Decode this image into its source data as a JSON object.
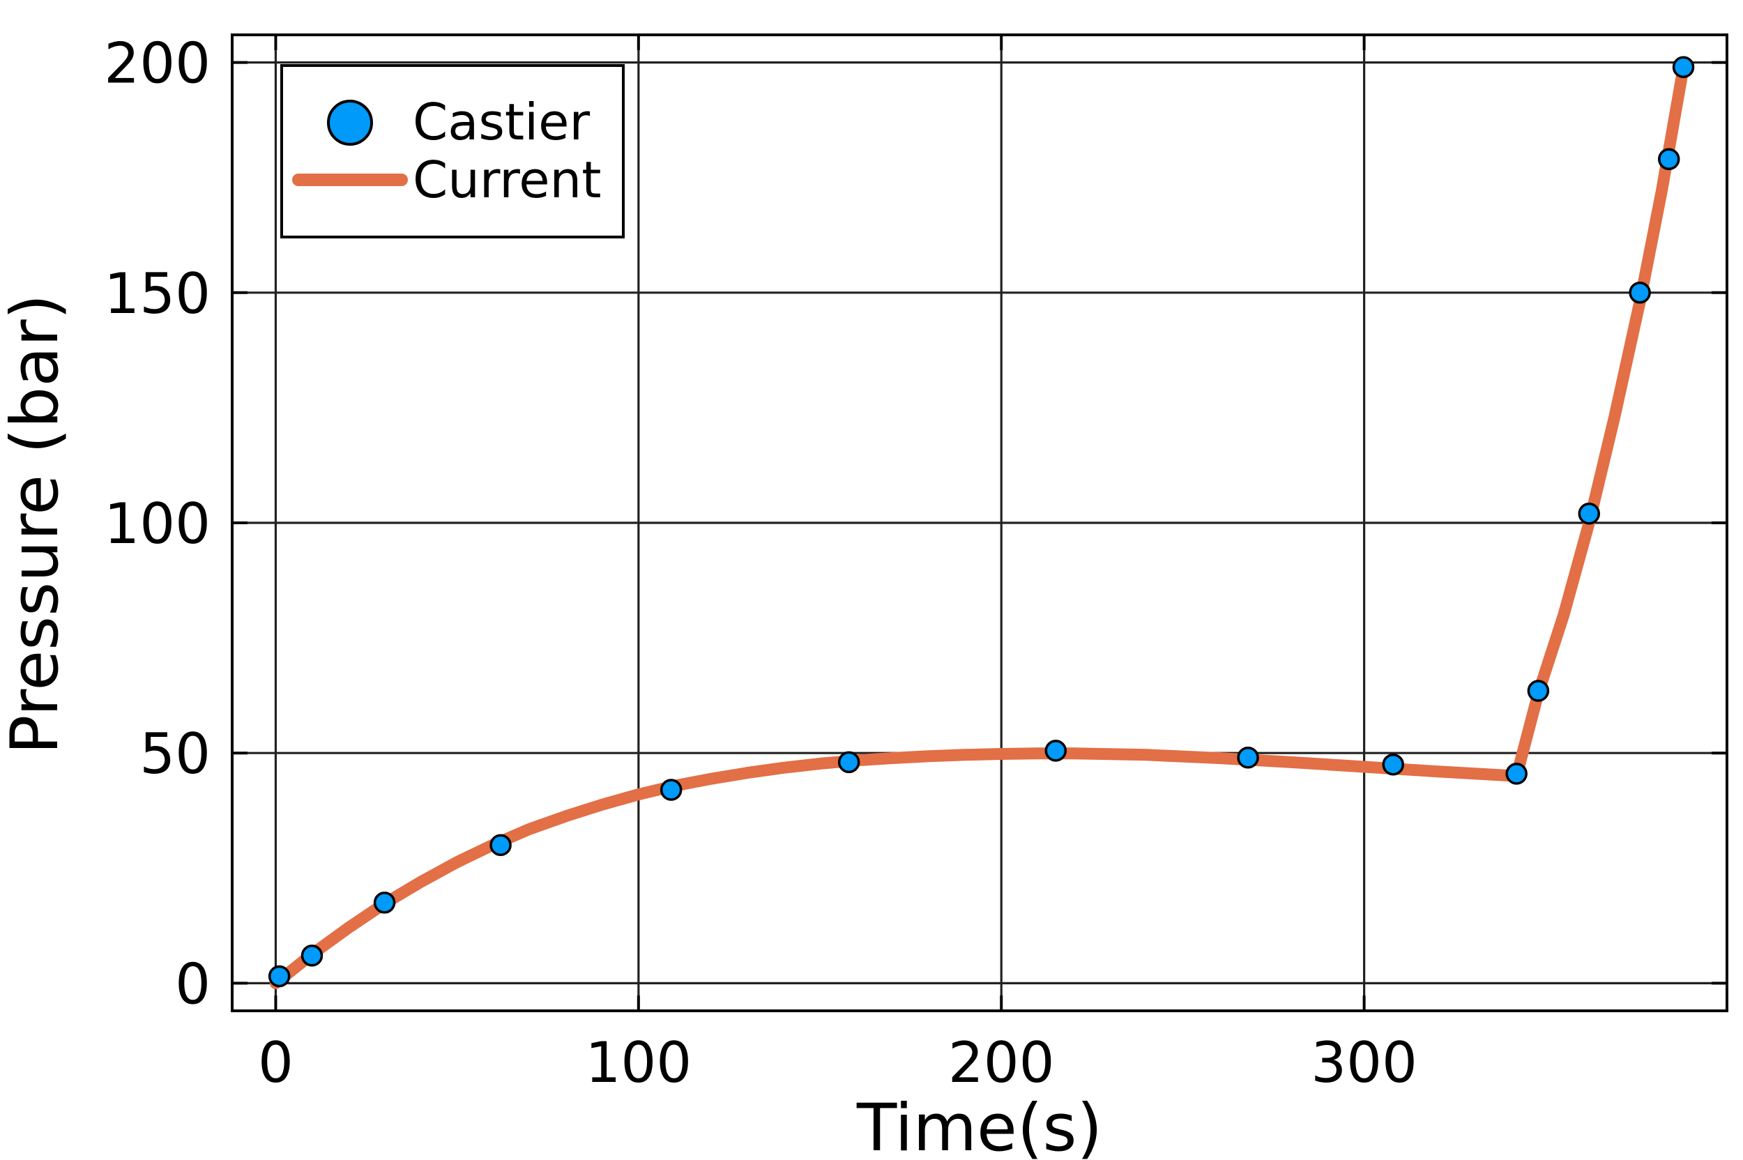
{
  "chart_data": {
    "type": "line",
    "title": "",
    "xlabel": "Time(s)",
    "ylabel": "Pressure (bar)",
    "xlim": [
      -12,
      400
    ],
    "ylim": [
      -6,
      206
    ],
    "xticks": [
      0,
      100,
      200,
      300
    ],
    "yticks": [
      0,
      50,
      100,
      150,
      200
    ],
    "grid": true,
    "legend_position": "top-left",
    "series": [
      {
        "name": "Castier",
        "kind": "scatter",
        "color": "#009AFA",
        "x": [
          1,
          10,
          30,
          62,
          109,
          158,
          215,
          268,
          308,
          342,
          348,
          362,
          376,
          384,
          388
        ],
        "y": [
          1.5,
          6,
          17.5,
          30,
          42,
          48,
          50.5,
          49,
          47.5,
          45.5,
          63.5,
          102,
          150,
          179,
          199
        ]
      },
      {
        "name": "Current",
        "kind": "line",
        "color": "#E26F46",
        "x": [
          0,
          10,
          20,
          30,
          40,
          50,
          60,
          70,
          80,
          90,
          100,
          110,
          120,
          130,
          140,
          150,
          160,
          170,
          180,
          190,
          200,
          210,
          220,
          240,
          260,
          280,
          300,
          320,
          342,
          348,
          355,
          362,
          369,
          376,
          382,
          388
        ],
        "y": [
          0,
          6.3,
          12,
          17.3,
          22,
          26.3,
          30.1,
          33.5,
          36.3,
          38.8,
          41,
          42.9,
          44.4,
          45.7,
          46.8,
          47.7,
          48.4,
          48.9,
          49.3,
          49.6,
          49.8,
          49.9,
          49.9,
          49.6,
          48.9,
          48,
          47,
          46,
          45,
          63,
          80,
          100,
          123,
          148,
          172,
          199
        ]
      }
    ]
  }
}
